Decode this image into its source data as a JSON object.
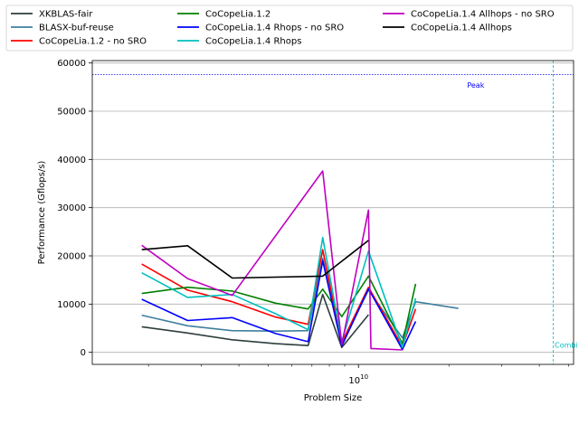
{
  "chart_data": {
    "type": "line",
    "title": "",
    "xlabel": "Problem Size",
    "ylabel": "Performance (Gflops/s)",
    "xscale": "log",
    "xlim": [
      1300000000.0,
      52000000000.0
    ],
    "ylim": [
      -2500,
      60500
    ],
    "yticks": [
      0,
      10000,
      20000,
      30000,
      40000,
      50000,
      60000
    ],
    "xtick_labels": [
      {
        "value": 10000000000.0,
        "label": "10^10"
      }
    ],
    "grid": "horizontal",
    "legend_position": "top, outside plot",
    "annotations": [
      {
        "text": "Peak",
        "x": 23000000000.0,
        "y": 54900,
        "color": "#0000ff"
      },
      {
        "text": "Combi",
        "x": 45000000000.0,
        "y": 1000,
        "color": "#00bfbf"
      }
    ],
    "reference_lines": [
      {
        "orientation": "horizontal",
        "value": 57600,
        "color": "#0000ff",
        "style": "dotted"
      },
      {
        "orientation": "vertical",
        "value": 44500000000.0,
        "color": "#00bfbf",
        "style": "dashed"
      }
    ],
    "series": [
      {
        "name": "XKBLAS-fair",
        "color": "#2f3d3d",
        "x": [
          1900000000.0,
          2700000000.0,
          3800000000.0,
          5300000000.0,
          6800000000.0,
          7600000000.0,
          8800000000.0,
          10800000000.0
        ],
        "y": [
          5300,
          4000,
          2600,
          1800,
          1400,
          12000,
          1000,
          7800
        ]
      },
      {
        "name": "BLASX-buf-reuse",
        "color": "#3f7f9f",
        "x": [
          1900000000.0,
          2700000000.0,
          3800000000.0,
          5300000000.0,
          6800000000.0,
          7600000000.0,
          8800000000.0,
          10800000000.0,
          14000000000.0,
          15500000000.0,
          21500000000.0
        ],
        "y": [
          7700,
          5500,
          4500,
          4400,
          4500,
          19500,
          1800,
          12900,
          3000,
          10500,
          9100
        ]
      },
      {
        "name": "CoCopeLia.1.2 - no SRO",
        "color": "#ff0000",
        "x": [
          1900000000.0,
          2700000000.0,
          3800000000.0,
          5300000000.0,
          6800000000.0,
          7600000000.0,
          8800000000.0,
          10800000000.0,
          14000000000.0,
          15500000000.0
        ],
        "y": [
          18300,
          12900,
          10500,
          7300,
          5800,
          21300,
          2000,
          13500,
          1200,
          9000
        ]
      },
      {
        "name": "CoCopeLia.1.2",
        "color": "#008000",
        "x": [
          1900000000.0,
          2700000000.0,
          3800000000.0,
          5300000000.0,
          6800000000.0,
          7600000000.0,
          8800000000.0,
          10800000000.0,
          14000000000.0,
          15500000000.0
        ],
        "y": [
          12200,
          13500,
          12700,
          10200,
          9000,
          13100,
          7400,
          15800,
          1800,
          14200
        ]
      },
      {
        "name": "CoCopeLia.1.4 Rhops - no SRO",
        "color": "#0000ff",
        "x": [
          1900000000.0,
          2700000000.0,
          3800000000.0,
          5300000000.0,
          6800000000.0,
          7600000000.0,
          8800000000.0,
          10800000000.0,
          14000000000.0,
          15500000000.0
        ],
        "y": [
          11000,
          6600,
          7200,
          3900,
          2200,
          19000,
          1300,
          13200,
          600,
          6400
        ]
      },
      {
        "name": "CoCopeLia.1.4 Rhops",
        "color": "#00bfbf",
        "x": [
          1900000000.0,
          2700000000.0,
          3800000000.0,
          5300000000.0,
          6800000000.0,
          7600000000.0,
          8800000000.0,
          10800000000.0,
          14000000000.0,
          15500000000.0
        ],
        "y": [
          16500,
          11400,
          12000,
          8000,
          4700,
          23800,
          2200,
          21000,
          1000,
          11200
        ]
      },
      {
        "name": "CoCopeLia.1.4 Allhops - no SRO",
        "color": "#bf00bf",
        "x": [
          1900000000.0,
          2700000000.0,
          3800000000.0,
          7600000000.0,
          8800000000.0,
          10800000000.0,
          11000000000.0,
          14000000000.0
        ],
        "y": [
          22200,
          15300,
          11800,
          37600,
          1600,
          29500,
          800,
          500
        ]
      },
      {
        "name": "CoCopeLia.1.4 Allhops",
        "color": "#000000",
        "x": [
          1900000000.0,
          2700000000.0,
          3800000000.0,
          7600000000.0,
          10800000000.0
        ],
        "y": [
          21300,
          22100,
          15400,
          15800,
          23200
        ]
      }
    ]
  }
}
